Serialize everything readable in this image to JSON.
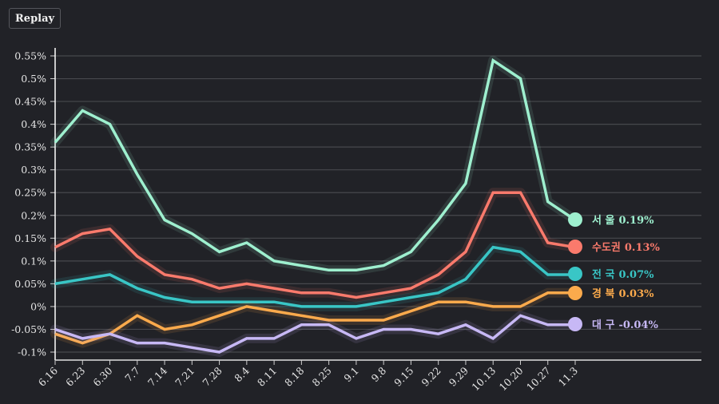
{
  "toolbar": {
    "replay_label": "Replay"
  },
  "chart_data": {
    "type": "line",
    "title": "",
    "xlabel": "",
    "ylabel": "",
    "ylim": [
      -0.1,
      0.55
    ],
    "grid": true,
    "y_ticks": [
      -0.1,
      -0.05,
      0,
      0.05,
      0.1,
      0.15,
      0.2,
      0.25,
      0.3,
      0.35,
      0.4,
      0.45,
      0.5,
      0.55
    ],
    "y_tick_labels": [
      "-0.1%",
      "-0.05%",
      "0%",
      "0.05%",
      "0.1%",
      "0.15%",
      "0.2%",
      "0.25%",
      "0.3%",
      "0.35%",
      "0.4%",
      "0.45%",
      "0.5%",
      "0.55%"
    ],
    "categories": [
      "6.16",
      "6.23",
      "6.30",
      "7.7",
      "7.14",
      "7.21",
      "7.28",
      "8.4",
      "8.11",
      "8.18",
      "8.25",
      "9.1",
      "9.8",
      "9.15",
      "9.22",
      "9.29",
      "10.13",
      "10.20",
      "10.27",
      "11.3"
    ],
    "series": [
      {
        "name": "서 울",
        "color": "#9ef0cf",
        "end_label": "0.19%",
        "values": [
          0.36,
          0.43,
          0.4,
          0.29,
          0.19,
          0.16,
          0.12,
          0.14,
          0.1,
          0.09,
          0.08,
          0.08,
          0.09,
          0.12,
          0.19,
          0.27,
          0.54,
          0.5,
          0.23,
          0.19
        ]
      },
      {
        "name": "수도권",
        "color": "#fa7a6c",
        "end_label": "0.13%",
        "values": [
          0.13,
          0.16,
          0.17,
          0.11,
          0.07,
          0.06,
          0.04,
          0.05,
          0.04,
          0.03,
          0.03,
          0.02,
          0.03,
          0.04,
          0.07,
          0.12,
          0.25,
          0.25,
          0.14,
          0.13
        ]
      },
      {
        "name": "전 국",
        "color": "#39c6c6",
        "end_label": "0.07%",
        "values": [
          0.05,
          0.06,
          0.07,
          0.04,
          0.02,
          0.01,
          0.01,
          0.01,
          0.01,
          0.0,
          0.0,
          0.0,
          0.01,
          0.02,
          0.03,
          0.06,
          0.13,
          0.12,
          0.07,
          0.07
        ]
      },
      {
        "name": "경 북",
        "color": "#fbaa4c",
        "end_label": "0.03%",
        "values": [
          -0.06,
          -0.08,
          -0.06,
          -0.02,
          -0.05,
          -0.04,
          -0.02,
          0.0,
          -0.01,
          -0.02,
          -0.03,
          -0.03,
          -0.03,
          -0.01,
          0.01,
          0.01,
          0.0,
          0.0,
          0.03,
          0.03
        ]
      },
      {
        "name": "대 구",
        "color": "#c7b8f5",
        "end_label": "-0.04%",
        "values": [
          -0.05,
          -0.07,
          -0.06,
          -0.08,
          -0.08,
          -0.09,
          -0.1,
          -0.07,
          -0.07,
          -0.04,
          -0.04,
          -0.07,
          -0.05,
          -0.05,
          -0.06,
          -0.04,
          -0.07,
          -0.02,
          -0.04,
          -0.04
        ]
      }
    ]
  }
}
